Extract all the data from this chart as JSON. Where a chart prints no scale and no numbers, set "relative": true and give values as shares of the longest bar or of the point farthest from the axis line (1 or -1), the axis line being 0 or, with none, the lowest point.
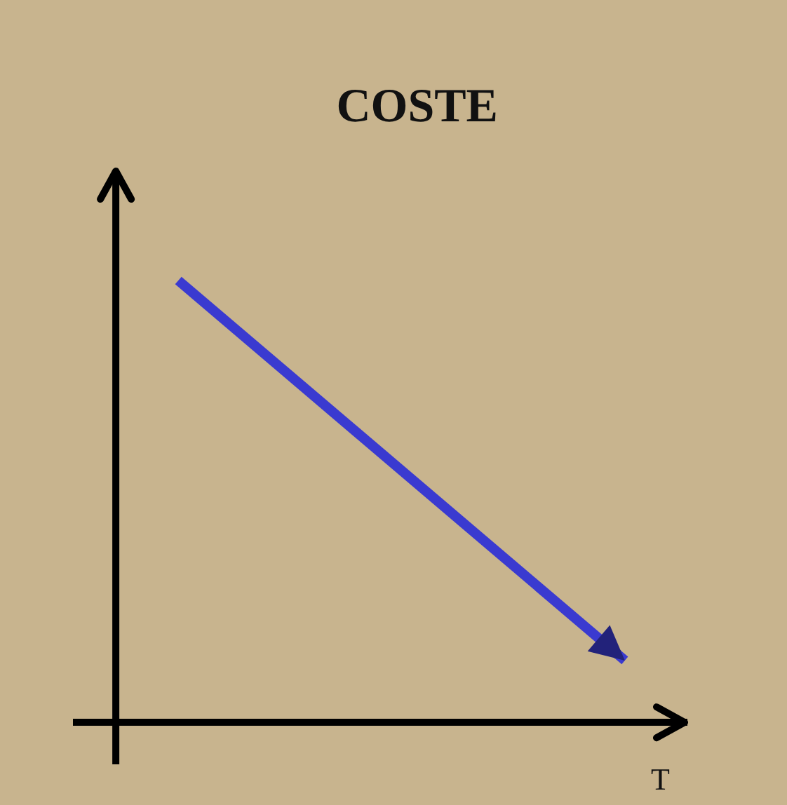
{
  "chart_data": {
    "type": "line",
    "title": "COSTE",
    "xlabel": "T",
    "categories": [
      null,
      null
    ],
    "series": [
      {
        "color": "#3a3ad0",
        "values": [
          1,
          0.14
        ]
      }
    ],
    "relative": true,
    "marker": "none",
    "line_style": "solid"
  }
}
